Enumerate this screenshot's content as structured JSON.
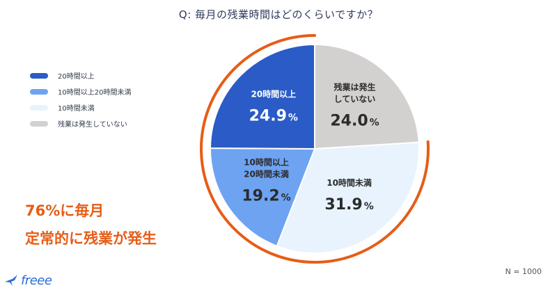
{
  "title": "Q: 毎月の残業時間はどのくらいですか？",
  "sample_size": "N = 1000",
  "headline": [
    "76%に毎月",
    "定常的に残業が発生"
  ],
  "logo_text": "freee",
  "colors": {
    "accent": "#e65d17",
    "brand": "#2f6fd6"
  },
  "chart_data": {
    "type": "pie",
    "title": "Q: 毎月の残業時間はどのくらいですか？",
    "series": [
      {
        "name": "20時間以上",
        "label_lines": [
          "20時間以上"
        ],
        "value": 24.9,
        "color": "#2a5bc6",
        "text_color": "#ffffff"
      },
      {
        "name": "残業は発生していない",
        "label_lines": [
          "残業は発生",
          "していない"
        ],
        "value": 24.0,
        "color": "#d3d0d0",
        "text_color": "#2b2b2b"
      },
      {
        "name": "10時間未満",
        "label_lines": [
          "10時間未満"
        ],
        "value": 31.9,
        "color": "#e8f3fd",
        "text_color": "#2b2b2b"
      },
      {
        "name": "10時間以上20時間未満",
        "label_lines": [
          "10時間以上",
          "20時間未満"
        ],
        "value": 19.2,
        "color": "#6ea3f2",
        "text_color": "#2b2b2b"
      }
    ],
    "slice_order": [
      "残業は発生していない",
      "10時間未満",
      "10時間以上20時間未満",
      "20時間以上"
    ],
    "legend": {
      "placement": "left",
      "entries": [
        "20時間以上",
        "10時間以上20時間未満",
        "10時間未満",
        "残業は発生していない"
      ]
    },
    "value_suffix": "%",
    "highlight_arc": {
      "covers": [
        "20時間以上",
        "10時間以上20時間未満",
        "10時間未満"
      ],
      "color": "#e65d17"
    }
  }
}
